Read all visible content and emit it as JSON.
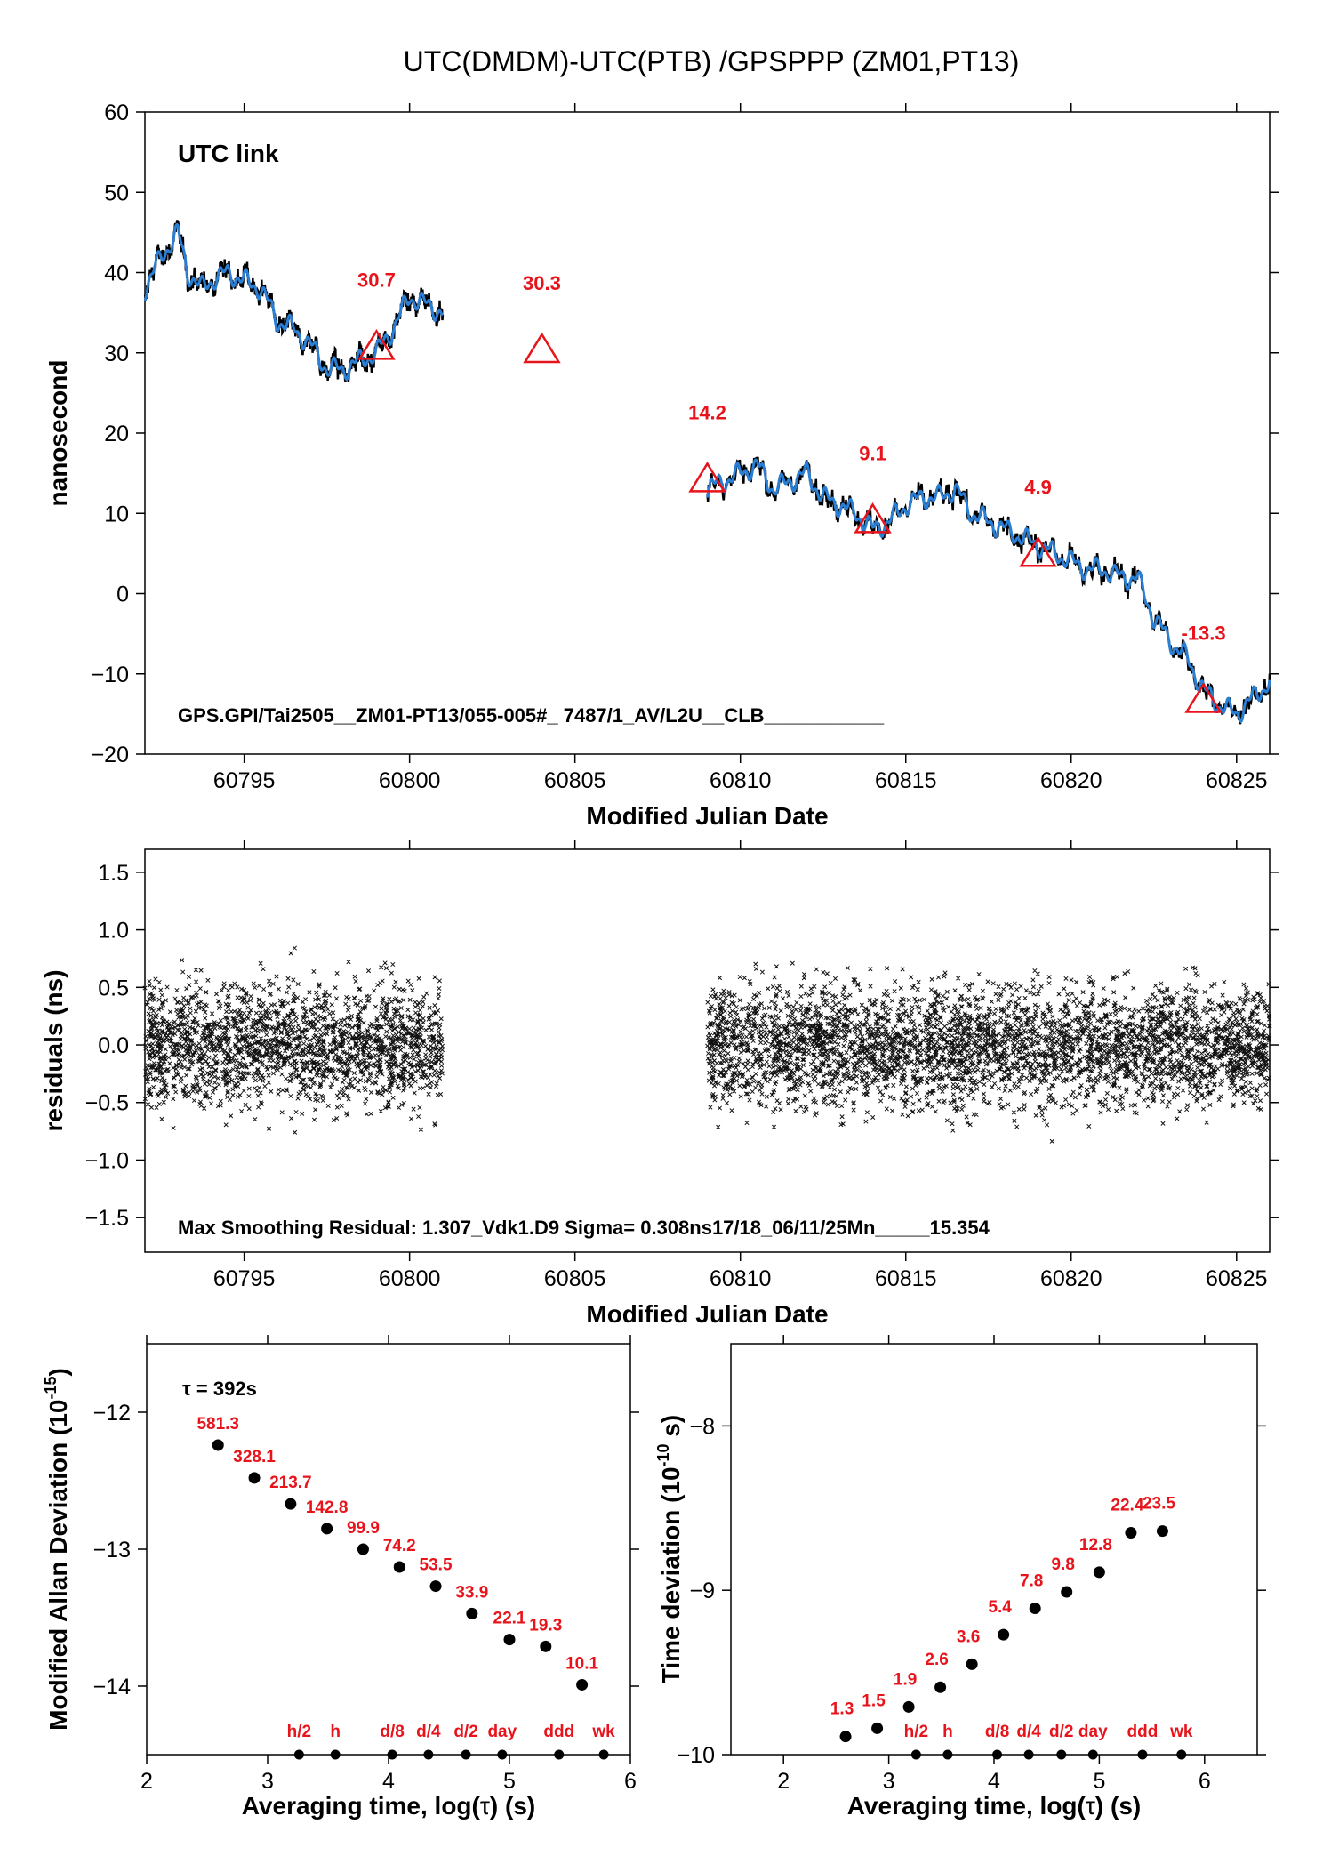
{
  "title": "UTC(DMDM)-UTC(PTB)  /GPSPPP  (ZM01,PT13)",
  "chart_data": [
    {
      "id": "top",
      "type": "line",
      "ylabel": "nanosecond",
      "xlabel": "Modified Julian Date",
      "xlim": [
        60792,
        60826
      ],
      "ylim": [
        -20,
        60
      ],
      "xticks": [
        60795,
        60800,
        60805,
        60810,
        60815,
        60820,
        60825
      ],
      "xtick_labels": [
        "60795",
        "60800",
        "60805",
        "60810",
        "60815",
        "60820",
        "60825"
      ],
      "yticks": [
        -20,
        -10,
        0,
        10,
        20,
        30,
        40,
        50,
        60
      ],
      "ytick_labels": [
        "−20",
        "−10",
        "0",
        "10",
        "20",
        "30",
        "40",
        "50",
        "60"
      ],
      "legend_text": "UTC link",
      "footer": "GPS.GPI/Tai2505__ZM01-PT13/055-005#_  7487/1_AV/L2U__CLB___________",
      "colors": {
        "raw": "#000000",
        "smooth": "#2a7fd4",
        "triangles": "#e8141b",
        "legend": "#6b8e23"
      },
      "series": [
        {
          "segment": 1,
          "x": [
            60792,
            60792.5,
            60793,
            60793.3,
            60793.7,
            60794,
            60794.5,
            60795,
            60795.5,
            60796,
            60796.5,
            60797,
            60797.5,
            60798,
            60798.5,
            60799,
            60799.5,
            60800,
            60800.5,
            60801
          ],
          "y": [
            38,
            42,
            45,
            40,
            38,
            39,
            40,
            39,
            38,
            34,
            33,
            31,
            28,
            28,
            29,
            30,
            33,
            37,
            36,
            35
          ]
        },
        {
          "segment": 2,
          "x": [
            60809,
            60809.5,
            60810,
            60810.5,
            60811,
            60811.5,
            60812,
            60812.5,
            60813,
            60813.5,
            60814,
            60814.5,
            60815,
            60815.5,
            60816,
            60816.5,
            60817,
            60817.5,
            60818,
            60818.5,
            60819,
            60819.5,
            60820,
            60820.5,
            60821,
            60821.5,
            60822,
            60822.5,
            60823,
            60823.5,
            60824,
            60824.5,
            60825,
            60825.5,
            60826
          ],
          "y": [
            13,
            14,
            15,
            16,
            13,
            14,
            15,
            12,
            11,
            10,
            8,
            9,
            11,
            12,
            12,
            13,
            10,
            9,
            8,
            7,
            6,
            5,
            4,
            3,
            3,
            2,
            2,
            -3,
            -6,
            -8,
            -12,
            -14,
            -15,
            -13,
            -11
          ]
        }
      ],
      "triangles": [
        {
          "x": 60799,
          "y": 30.7,
          "label": "30.7"
        },
        {
          "x": 60804,
          "y": 30.3,
          "label": "30.3"
        },
        {
          "x": 60809,
          "y": 14.2,
          "label": "14.2"
        },
        {
          "x": 60814,
          "y": 9.1,
          "label": "9.1"
        },
        {
          "x": 60819,
          "y": 4.9,
          "label": "4.9"
        },
        {
          "x": 60824,
          "y": -13.3,
          "label": "-13.3"
        }
      ]
    },
    {
      "id": "residuals",
      "type": "scatter",
      "ylabel": "residuals (ns)",
      "xlabel": "Modified Julian Date",
      "xlim": [
        60792,
        60826
      ],
      "ylim": [
        -1.8,
        1.7
      ],
      "xticks": [
        60795,
        60800,
        60805,
        60810,
        60815,
        60820,
        60825
      ],
      "xtick_labels": [
        "60795",
        "60800",
        "60805",
        "60810",
        "60815",
        "60820",
        "60825"
      ],
      "yticks": [
        -1.5,
        -1.0,
        -0.5,
        0.0,
        0.5,
        1.0,
        1.5
      ],
      "ytick_labels": [
        "−1.5",
        "−1.0",
        "−0.5",
        "0.0",
        "0.5",
        "1.0",
        "1.5"
      ],
      "marker": "x",
      "x_ranges": [
        [
          60792,
          60801
        ],
        [
          60809,
          60826
        ]
      ],
      "sigma": 0.308,
      "max_residual": 1.307,
      "footer": "Max Smoothing Residual: 1.307_Vdk1.D9  Sigma= 0.308ns17/18_06/11/25Mn_____15.354"
    },
    {
      "id": "mdev",
      "type": "scatter",
      "ylabel_pre": "Modified Allan Deviation (10",
      "ylabel_exp": "-15",
      "ylabel_post": ")",
      "xlabel_pre": "Averaging time, log(",
      "xlabel_sym": "τ",
      "xlabel_post": ") (s)",
      "xlim": [
        2,
        6
      ],
      "ylim": [
        -14.5,
        -11.5
      ],
      "xticks": [
        2,
        3,
        4,
        5,
        6
      ],
      "xtick_labels": [
        "2",
        "3",
        "4",
        "5",
        "6"
      ],
      "yticks": [
        -14,
        -13,
        -12
      ],
      "ytick_labels": [
        "−14",
        "−13",
        "−12"
      ],
      "tau_note": "τ = 392s",
      "points": [
        {
          "x": 2.59,
          "y": -12.24,
          "label": "581.3"
        },
        {
          "x": 2.89,
          "y": -12.48,
          "label": "328.1"
        },
        {
          "x": 3.19,
          "y": -12.67,
          "label": "213.7"
        },
        {
          "x": 3.49,
          "y": -12.85,
          "label": "142.8"
        },
        {
          "x": 3.79,
          "y": -13.0,
          "label": "99.9"
        },
        {
          "x": 4.09,
          "y": -13.13,
          "label": "74.2"
        },
        {
          "x": 4.39,
          "y": -13.27,
          "label": "53.5"
        },
        {
          "x": 4.69,
          "y": -13.47,
          "label": "33.9"
        },
        {
          "x": 5.0,
          "y": -13.66,
          "label": "22.1"
        },
        {
          "x": 5.3,
          "y": -13.71,
          "label": "19.3"
        },
        {
          "x": 5.6,
          "y": -13.99,
          "label": "10.1"
        }
      ],
      "markers": [
        {
          "x": 3.26,
          "label": "h/2"
        },
        {
          "x": 3.56,
          "label": "h"
        },
        {
          "x": 4.03,
          "label": "d/8"
        },
        {
          "x": 4.33,
          "label": "d/4"
        },
        {
          "x": 4.64,
          "label": "d/2"
        },
        {
          "x": 4.94,
          "label": "day"
        },
        {
          "x": 5.41,
          "label": "ddd"
        },
        {
          "x": 5.78,
          "label": "wk"
        }
      ]
    },
    {
      "id": "tdev",
      "type": "scatter",
      "ylabel_pre": "Time deviation (10",
      "ylabel_exp": "-10",
      "ylabel_post": " s)",
      "xlabel_pre": "Averaging time, log(",
      "xlabel_sym": "τ",
      "xlabel_post": ") (s)",
      "xlim": [
        1.5,
        6.5
      ],
      "ylim": [
        -10,
        -7.5
      ],
      "xticks": [
        2,
        3,
        4,
        5,
        6
      ],
      "xtick_labels": [
        "2",
        "3",
        "4",
        "5",
        "6"
      ],
      "yticks": [
        -10,
        -9,
        -8
      ],
      "ytick_labels": [
        "−10",
        "−9",
        "−8"
      ],
      "points": [
        {
          "x": 2.59,
          "y": -9.89,
          "label": "1.3"
        },
        {
          "x": 2.89,
          "y": -9.84,
          "label": "1.5"
        },
        {
          "x": 3.19,
          "y": -9.71,
          "label": "1.9"
        },
        {
          "x": 3.49,
          "y": -9.59,
          "label": "2.6"
        },
        {
          "x": 3.79,
          "y": -9.45,
          "label": "3.6"
        },
        {
          "x": 4.09,
          "y": -9.27,
          "label": "5.4"
        },
        {
          "x": 4.39,
          "y": -9.11,
          "label": "7.8"
        },
        {
          "x": 4.69,
          "y": -9.01,
          "label": "9.8"
        },
        {
          "x": 5.0,
          "y": -8.89,
          "label": "12.8"
        },
        {
          "x": 5.3,
          "y": -8.65,
          "label": "22.4"
        },
        {
          "x": 5.6,
          "y": -8.64,
          "label": "23.5"
        }
      ],
      "markers": [
        {
          "x": 3.26,
          "label": "h/2"
        },
        {
          "x": 3.56,
          "label": "h"
        },
        {
          "x": 4.03,
          "label": "d/8"
        },
        {
          "x": 4.33,
          "label": "d/4"
        },
        {
          "x": 4.64,
          "label": "d/2"
        },
        {
          "x": 4.94,
          "label": "day"
        },
        {
          "x": 5.41,
          "label": "ddd"
        },
        {
          "x": 5.78,
          "label": "wk"
        }
      ]
    }
  ]
}
